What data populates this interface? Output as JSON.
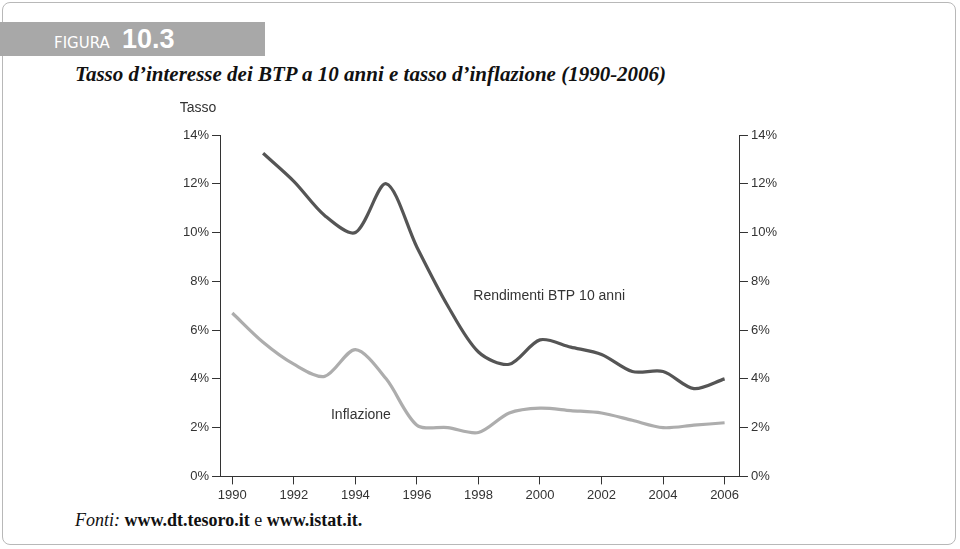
{
  "header": {
    "label": "FIGURA",
    "number": "10.3"
  },
  "chart_data": {
    "type": "line",
    "title": "Tasso d’interesse dei BTP a 10 anni e tasso d’inflazione (1990-2006)",
    "ylabel": "Tasso",
    "x": [
      1990,
      1991,
      1992,
      1993,
      1994,
      1995,
      1996,
      1997,
      1998,
      1999,
      2000,
      2001,
      2002,
      2003,
      2004,
      2005,
      2006
    ],
    "series": [
      {
        "name": "Rendimenti BTP 10 anni",
        "color": "#555555",
        "values": [
          null,
          13.25,
          12.1,
          10.7,
          10.0,
          12.0,
          9.4,
          7.0,
          5.1,
          4.6,
          5.6,
          5.3,
          5.0,
          4.3,
          4.3,
          3.6,
          4.0
        ]
      },
      {
        "name": "Inflazione",
        "color": "#adadad",
        "values": [
          6.7,
          5.5,
          4.6,
          4.1,
          5.2,
          4.0,
          2.1,
          2.0,
          1.8,
          2.6,
          2.8,
          2.7,
          2.6,
          2.3,
          2.0,
          2.1,
          2.2
        ]
      }
    ],
    "xlim": [
      1989.6,
      2006.5
    ],
    "xticks": [
      1990,
      1992,
      1994,
      1996,
      1998,
      2000,
      2002,
      2004,
      2006
    ],
    "ylim": [
      0,
      14
    ],
    "yticks": [
      {
        "value": 0,
        "label": "0%"
      },
      {
        "value": 2,
        "label": "2%"
      },
      {
        "value": 4,
        "label": "4%"
      },
      {
        "value": 6,
        "label": "6%"
      },
      {
        "value": 8,
        "label": "8%"
      },
      {
        "value": 10,
        "label": "10%"
      },
      {
        "value": 12,
        "label": "12%"
      },
      {
        "value": 14,
        "label": "14%"
      }
    ],
    "y2lim": [
      0,
      14
    ],
    "y2ticks": [
      {
        "value": 0,
        "label": "0%"
      },
      {
        "value": 2,
        "label": "2%"
      },
      {
        "value": 4,
        "label": "4%"
      },
      {
        "value": 6,
        "label": "6%"
      },
      {
        "value": 8,
        "label": "8%"
      },
      {
        "value": 10,
        "label": "10%"
      },
      {
        "value": 12,
        "label": "12%"
      },
      {
        "value": 14,
        "label": "14%"
      }
    ],
    "grid": false
  },
  "source": "Fonti: www.dt.tesoro.it e www.istat.it."
}
